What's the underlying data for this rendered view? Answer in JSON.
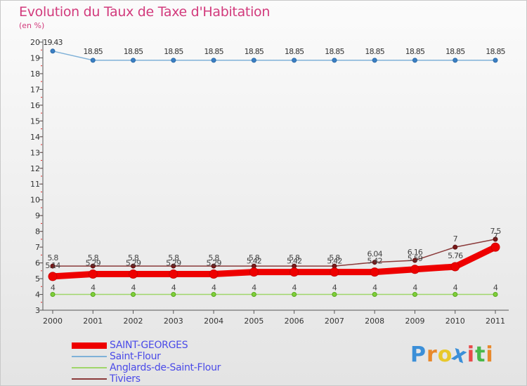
{
  "title": "Evolution du Taux de Taxe d'Habitation",
  "subtitle": "(en %)",
  "logo": {
    "letters": [
      "P",
      "r",
      "o",
      "x",
      "i",
      "t",
      "i"
    ],
    "colors": [
      "#3b8fd8",
      "#e8892c",
      "#e8c82c",
      "#3b8fd8",
      "#e84a4a",
      "#4ab84a",
      "#e8892c"
    ]
  },
  "chart_data": {
    "type": "line",
    "x": [
      "2000",
      "2001",
      "2002",
      "2003",
      "2004",
      "2005",
      "2006",
      "2007",
      "2008",
      "2009",
      "2010",
      "2011"
    ],
    "ylim": [
      3,
      20
    ],
    "yticks": [
      "3",
      "4",
      "5",
      "6",
      "7",
      "8",
      "9",
      "10",
      "11",
      "12",
      "13",
      "14",
      "15",
      "16",
      "17",
      "18",
      "19",
      "20"
    ],
    "grid": false,
    "legend_position": "bottom-left",
    "series": [
      {
        "name": "SAINT-GEORGES",
        "color": "#ee0000",
        "values": [
          5.14,
          5.29,
          5.29,
          5.29,
          5.29,
          5.42,
          5.42,
          5.42,
          5.42,
          5.59,
          5.76,
          7
        ],
        "labels": [
          "5.14",
          "5.29",
          "5.29",
          "5.29",
          "5.29",
          "5.42",
          "5.42",
          "5.42",
          "5.42",
          "5.59",
          "5.76",
          "7"
        ]
      },
      {
        "name": "Saint-Flour",
        "color": "#7fb1d8",
        "values": [
          19.43,
          18.85,
          18.85,
          18.85,
          18.85,
          18.85,
          18.85,
          18.85,
          18.85,
          18.85,
          18.85,
          18.85
        ],
        "labels": [
          "19.43",
          "18.85",
          "18.85",
          "18.85",
          "18.85",
          "18.85",
          "18.85",
          "18.85",
          "18.85",
          "18.85",
          "18.85",
          "18.85"
        ]
      },
      {
        "name": "Anglards-de-Saint-Flour",
        "color": "#9fd66a",
        "values": [
          4,
          4,
          4,
          4,
          4,
          4,
          4,
          4,
          4,
          4,
          4,
          4
        ],
        "labels": [
          "4",
          "4",
          "4",
          "4",
          "4",
          "4",
          "4",
          "4",
          "4",
          "4",
          "4",
          "4"
        ]
      },
      {
        "name": "Tiviers",
        "color": "#8b3a3a",
        "values": [
          5.8,
          5.8,
          5.8,
          5.8,
          5.8,
          5.8,
          5.8,
          5.8,
          6.04,
          6.16,
          7,
          7.5
        ],
        "labels": [
          "5.8",
          "5.8",
          "5.8",
          "5.8",
          "5.8",
          "5.8",
          "5.8",
          "5.8",
          "6.04",
          "6.16",
          "7",
          "7.5"
        ]
      }
    ]
  }
}
